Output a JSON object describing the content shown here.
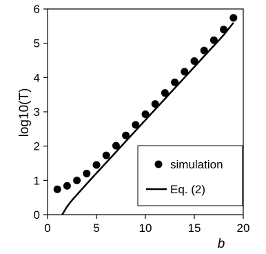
{
  "chart_data": {
    "type": "scatter",
    "title": "",
    "xlabel": "b",
    "ylabel": "log10(T)",
    "xlim": [
      0,
      20
    ],
    "ylim": [
      0,
      6
    ],
    "x_ticks": [
      "0",
      "5",
      "10",
      "15",
      "20"
    ],
    "y_ticks": [
      "0",
      "1",
      "2",
      "3",
      "4",
      "5",
      "6"
    ],
    "grid": false,
    "legend_position": "bottom-right",
    "series": [
      {
        "name": "simulation",
        "kind": "markers",
        "x": [
          1,
          2,
          3,
          4,
          5,
          6,
          7,
          8,
          9,
          10,
          11,
          12,
          13,
          14,
          15,
          16,
          17,
          18,
          19
        ],
        "y": [
          0.74,
          0.84,
          1.0,
          1.2,
          1.45,
          1.73,
          2.01,
          2.31,
          2.62,
          2.93,
          3.23,
          3.55,
          3.86,
          4.17,
          4.48,
          4.79,
          5.09,
          5.4,
          5.74
        ]
      },
      {
        "name": "Eq. (2)",
        "kind": "line",
        "x": [
          1.5,
          2,
          2.5,
          3,
          4,
          5,
          6,
          7,
          8,
          9,
          10,
          11,
          12,
          13,
          14,
          15,
          16,
          17,
          18,
          19
        ],
        "y": [
          0.0,
          0.24,
          0.42,
          0.58,
          0.9,
          1.21,
          1.52,
          1.83,
          2.14,
          2.45,
          2.76,
          3.07,
          3.38,
          3.69,
          4.0,
          4.31,
          4.62,
          4.93,
          5.24,
          5.6
        ]
      }
    ]
  }
}
